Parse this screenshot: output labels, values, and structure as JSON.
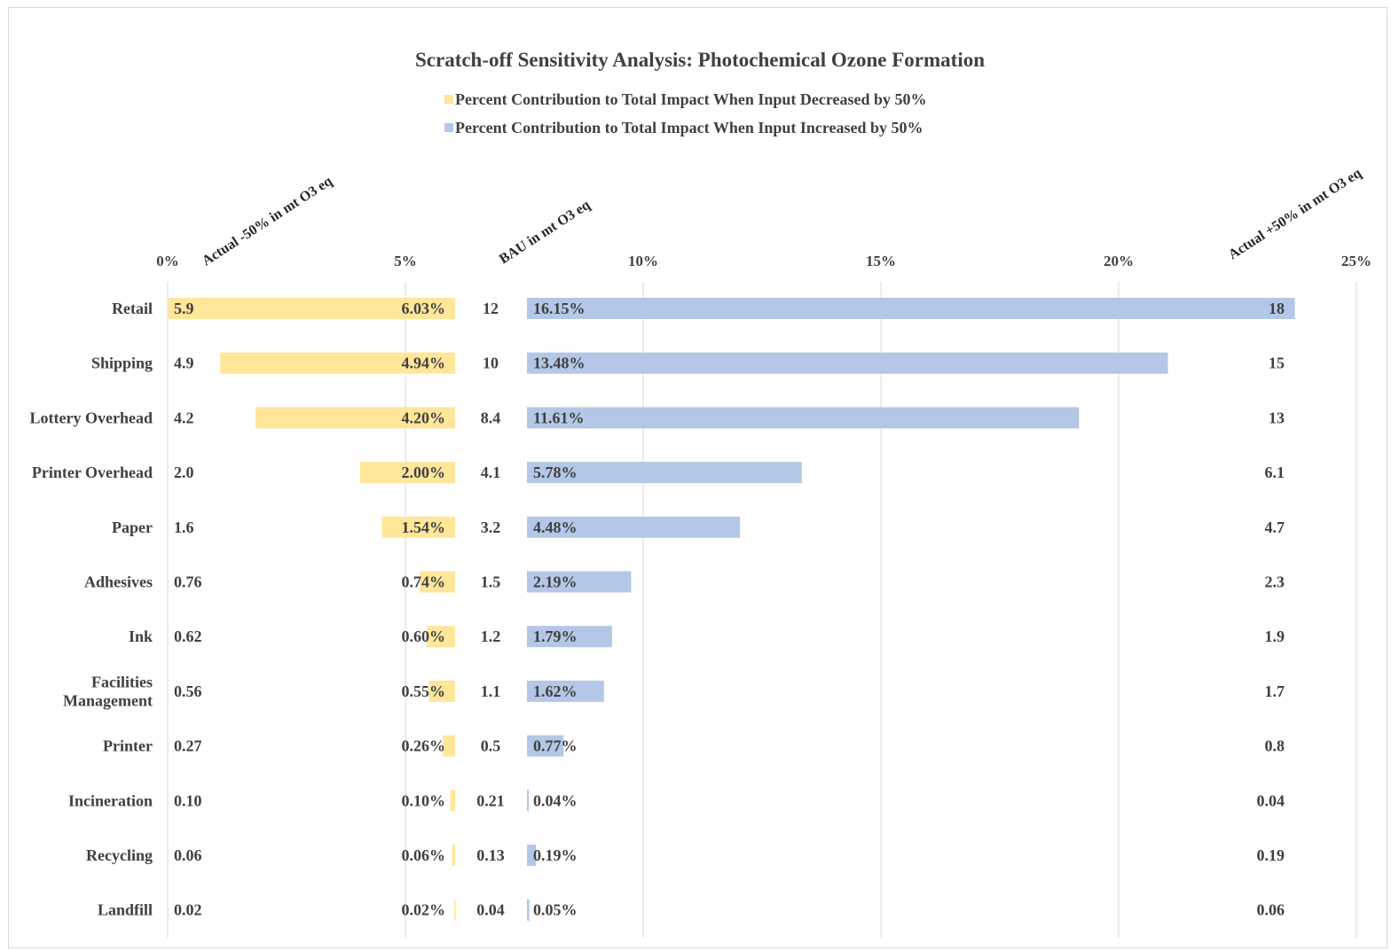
{
  "chart_data": {
    "type": "bar",
    "title": "Scratch-off Sensitivity Analysis: Photochemical Ozone Formation",
    "xlim": [
      0,
      25
    ],
    "x_ticks": [
      "0%",
      "5%",
      "10%",
      "15%",
      "20%",
      "25%"
    ],
    "grid": true,
    "legend_position": "top",
    "column_headers": {
      "actual_minus": "Actual -50% in mt O3 eq",
      "bau": "BAU in mt O3 eq",
      "actual_plus": "Actual +50% in mt O3 eq"
    },
    "categories": [
      "Retail",
      "Shipping",
      "Lottery Overhead",
      "Printer Overhead",
      "Paper",
      "Adhesives",
      "Ink",
      "Facilities Management",
      "Printer",
      "Incineration",
      "Recycling",
      "Landfill"
    ],
    "category_lines": [
      [
        "Retail"
      ],
      [
        "Shipping"
      ],
      [
        "Lottery Overhead"
      ],
      [
        "Printer Overhead"
      ],
      [
        "Paper"
      ],
      [
        "Adhesives"
      ],
      [
        "Ink"
      ],
      [
        "Facilities",
        "Management"
      ],
      [
        "Printer"
      ],
      [
        "Incineration"
      ],
      [
        "Recycling"
      ],
      [
        "Landfill"
      ]
    ],
    "series": [
      {
        "name": "Percent Contribution to Total Impact When Input Decreased by 50%",
        "color": "#ffe699",
        "values": [
          6.03,
          4.94,
          4.2,
          2.0,
          1.54,
          0.74,
          0.6,
          0.55,
          0.26,
          0.1,
          0.06,
          0.02
        ],
        "labels": [
          "6.03%",
          "4.94%",
          "4.20%",
          "2.00%",
          "1.54%",
          "0.74%",
          "0.60%",
          "0.55%",
          "0.26%",
          "0.10%",
          "0.06%",
          "0.02%"
        ]
      },
      {
        "name": "Percent Contribution to Total Impact When Input Increased by 50%",
        "color": "#b4c7e7",
        "values": [
          16.15,
          13.48,
          11.61,
          5.78,
          4.48,
          2.19,
          1.79,
          1.62,
          0.77,
          0.04,
          0.19,
          0.05
        ],
        "labels": [
          "16.15%",
          "13.48%",
          "11.61%",
          "5.78%",
          "4.48%",
          "2.19%",
          "1.79%",
          "1.62%",
          "0.77%",
          "0.04%",
          "0.19%",
          "0.05%"
        ]
      }
    ],
    "actual_minus_50": [
      "5.9",
      "4.9",
      "4.2",
      "2.0",
      "1.6",
      "0.76",
      "0.62",
      "0.56",
      "0.27",
      "0.10",
      "0.06",
      "0.02"
    ],
    "bau": [
      "12",
      "10",
      "8.4",
      "4.1",
      "3.2",
      "1.5",
      "1.2",
      "1.1",
      "0.5",
      "0.21",
      "0.13",
      "0.04"
    ],
    "actual_plus_50": [
      "18",
      "15",
      "13",
      "6.1",
      "4.7",
      "2.3",
      "1.9",
      "1.7",
      "0.8",
      "0.04",
      "0.19",
      "0.06"
    ]
  }
}
